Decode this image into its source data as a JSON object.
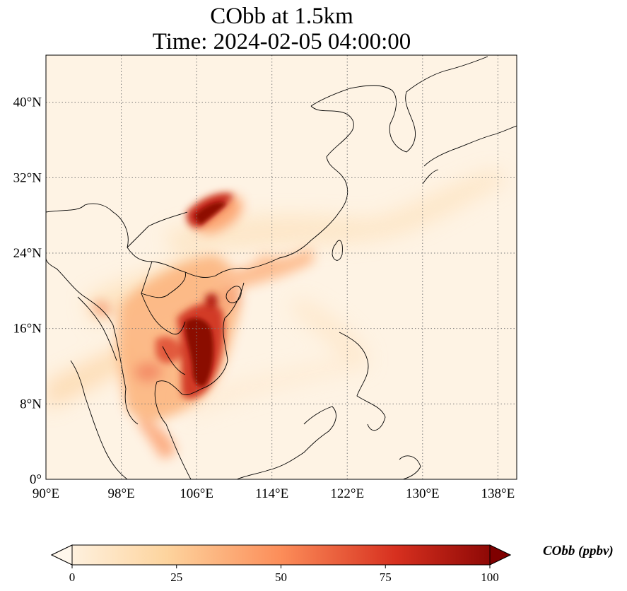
{
  "title": {
    "line1": "CObb at 1.5km",
    "line2": "Time: 2024-02-05 04:00:00"
  },
  "map": {
    "variable": "CObb",
    "level": "1.5km",
    "lon_range": [
      90,
      140
    ],
    "lat_range": [
      0,
      45
    ],
    "gridlines": "dotted",
    "lon_ticks": [
      "90°E",
      "98°E",
      "106°E",
      "114°E",
      "122°E",
      "130°E",
      "138°E"
    ],
    "lon_tick_values": [
      90,
      98,
      106,
      114,
      122,
      130,
      138
    ],
    "lat_ticks": [
      "0°",
      "8°N",
      "16°N",
      "24°N",
      "32°N",
      "40°N"
    ],
    "lat_tick_values": [
      0,
      8,
      16,
      24,
      32,
      40
    ],
    "colormap": "OrRd",
    "hotspots": [
      {
        "region": "Central Vietnam / Laos",
        "level": "very high"
      },
      {
        "region": "Southern Vietnam / Cambodia",
        "level": "very high"
      },
      {
        "region": "Sichuan / Chongqing",
        "level": "very high"
      },
      {
        "region": "Thailand / Myanmar",
        "level": "moderate"
      },
      {
        "region": "South China coast",
        "level": "moderate"
      }
    ]
  },
  "colorbar": {
    "label": "CObb (ppbv)",
    "ticks": [
      "0",
      "25",
      "50",
      "75",
      "100"
    ],
    "tick_values": [
      0,
      25,
      50,
      75,
      100
    ],
    "min": 0,
    "max": 100,
    "extend": "both",
    "colors": [
      "#fff7ec",
      "#fdd49e",
      "#fc8d59",
      "#d7301f",
      "#7f0000"
    ]
  }
}
